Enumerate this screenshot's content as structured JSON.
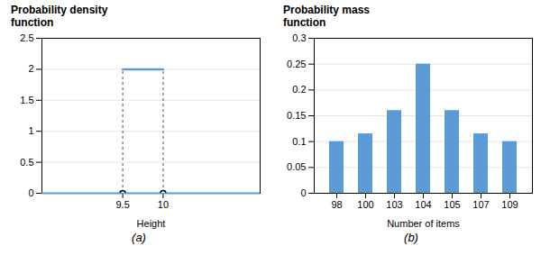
{
  "chart_data": [
    {
      "type": "line",
      "ylabel": "Probability density\nfunction",
      "xlabel": "Height",
      "caption": "(a)",
      "x": [
        9.5,
        10
      ],
      "values": [
        2,
        2
      ],
      "color": "#5B9BD5",
      "xlim": [
        8.5,
        11.2
      ],
      "xticks": [
        9.5,
        10
      ],
      "ylim": [
        0,
        2.5
      ],
      "yticks": [
        0,
        0.5,
        1,
        1.5,
        2,
        2.5
      ],
      "grid": true
    },
    {
      "type": "bar",
      "ylabel": "Probability mass\nfunction",
      "xlabel": "Number of items",
      "caption": "(b)",
      "categories": [
        98,
        100,
        103,
        104,
        105,
        107,
        109
      ],
      "values": [
        0.1,
        0.115,
        0.16,
        0.25,
        0.16,
        0.115,
        0.1
      ],
      "color": "#5B9BD5",
      "ylim": [
        0,
        0.3
      ],
      "yticks": [
        0,
        0.05,
        0.1,
        0.15,
        0.2,
        0.25,
        0.3
      ],
      "grid": true
    }
  ]
}
